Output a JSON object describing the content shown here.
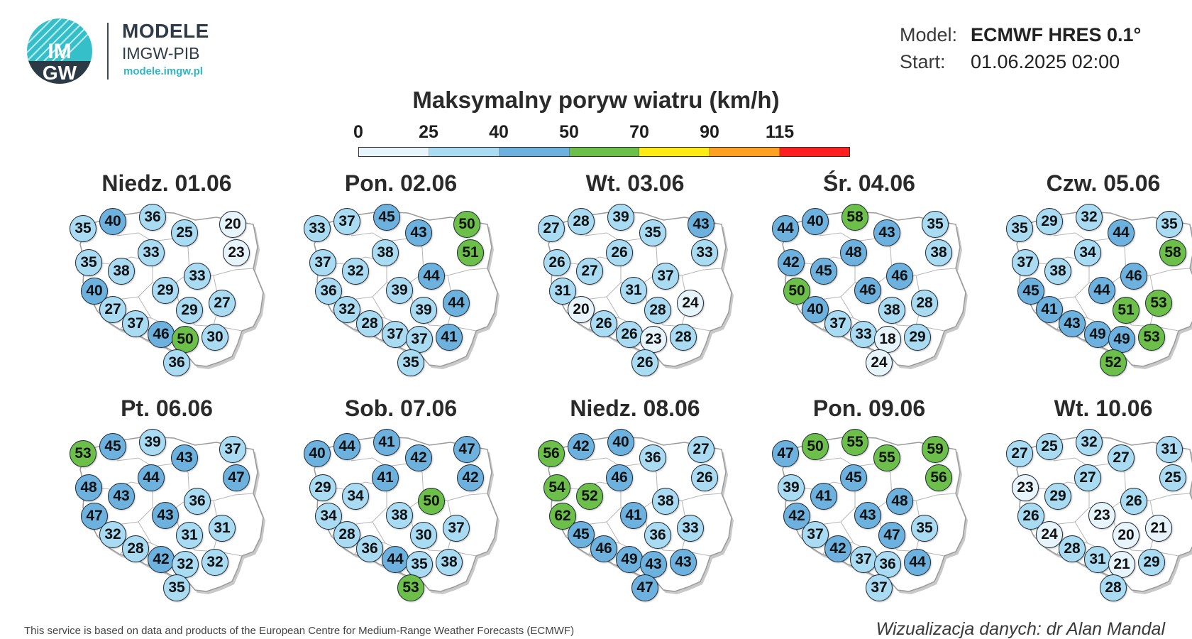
{
  "header": {
    "logo_text_top": "IM",
    "logo_text_bottom": "GW",
    "brand_title": "MODELE",
    "brand_subtitle": "IMGW-PIB",
    "brand_url": "modele.imgw.pl",
    "model_label": "Model:",
    "model_value": "ECMWF HRES 0.1°",
    "start_label": "Start:",
    "start_value": "01.06.2025 02:00"
  },
  "legend": {
    "title": "Maksymalny poryw wiatru (km/h)",
    "ticks": [
      "0",
      "25",
      "40",
      "50",
      "70",
      "90",
      "115"
    ],
    "bins": [
      {
        "color": "#e7f4fb"
      },
      {
        "color": "#a9dbf3"
      },
      {
        "color": "#6db1de"
      },
      {
        "color": "#6cc04a"
      },
      {
        "color": "#ffeb14"
      },
      {
        "color": "#ffa023"
      },
      {
        "color": "#ff1f1f"
      }
    ]
  },
  "panels": [
    {
      "title": "Niedz. 01.06",
      "values": [
        35,
        40,
        36,
        25,
        20,
        23,
        35,
        38,
        33,
        33,
        40,
        29,
        27,
        37,
        29,
        27,
        46,
        50,
        30,
        36
      ]
    },
    {
      "title": "Pon. 02.06",
      "values": [
        33,
        37,
        45,
        43,
        50,
        51,
        37,
        32,
        38,
        44,
        36,
        39,
        32,
        28,
        39,
        44,
        37,
        37,
        41,
        35
      ]
    },
    {
      "title": "Wt. 03.06",
      "values": [
        27,
        28,
        39,
        35,
        43,
        33,
        26,
        27,
        26,
        37,
        31,
        31,
        20,
        26,
        28,
        24,
        26,
        23,
        28,
        26
      ]
    },
    {
      "title": "Śr. 04.06",
      "values": [
        44,
        40,
        58,
        43,
        35,
        38,
        42,
        45,
        48,
        46,
        50,
        46,
        40,
        37,
        38,
        28,
        33,
        18,
        29,
        24
      ]
    },
    {
      "title": "Czw. 05.06",
      "values": [
        35,
        29,
        32,
        44,
        35,
        58,
        37,
        38,
        34,
        46,
        45,
        44,
        41,
        43,
        51,
        53,
        49,
        49,
        53,
        52
      ]
    },
    {
      "title": "Pt. 06.06",
      "values": [
        53,
        45,
        39,
        43,
        37,
        47,
        48,
        43,
        44,
        36,
        47,
        43,
        32,
        28,
        31,
        31,
        42,
        32,
        32,
        35
      ]
    },
    {
      "title": "Sob. 07.06",
      "values": [
        40,
        44,
        41,
        42,
        47,
        42,
        29,
        34,
        41,
        50,
        34,
        38,
        28,
        36,
        30,
        37,
        44,
        35,
        38,
        53
      ]
    },
    {
      "title": "Niedz. 08.06",
      "values": [
        56,
        42,
        40,
        36,
        27,
        26,
        54,
        52,
        46,
        38,
        62,
        41,
        45,
        46,
        36,
        33,
        49,
        43,
        43,
        47
      ]
    },
    {
      "title": "Pon. 09.06",
      "values": [
        47,
        50,
        55,
        55,
        59,
        56,
        39,
        41,
        45,
        48,
        42,
        43,
        37,
        42,
        47,
        35,
        37,
        36,
        44,
        37
      ]
    },
    {
      "title": "Wt. 10.06",
      "values": [
        27,
        25,
        32,
        27,
        31,
        25,
        23,
        29,
        27,
        26,
        26,
        23,
        24,
        28,
        20,
        21,
        31,
        21,
        29,
        28
      ]
    }
  ],
  "footer": {
    "left": "This service is based on data and products of the European Centre for Medium-Range Weather Forecasts (ECMWF)",
    "right": "Wizualizacja danych: dr Alan Mandal"
  }
}
